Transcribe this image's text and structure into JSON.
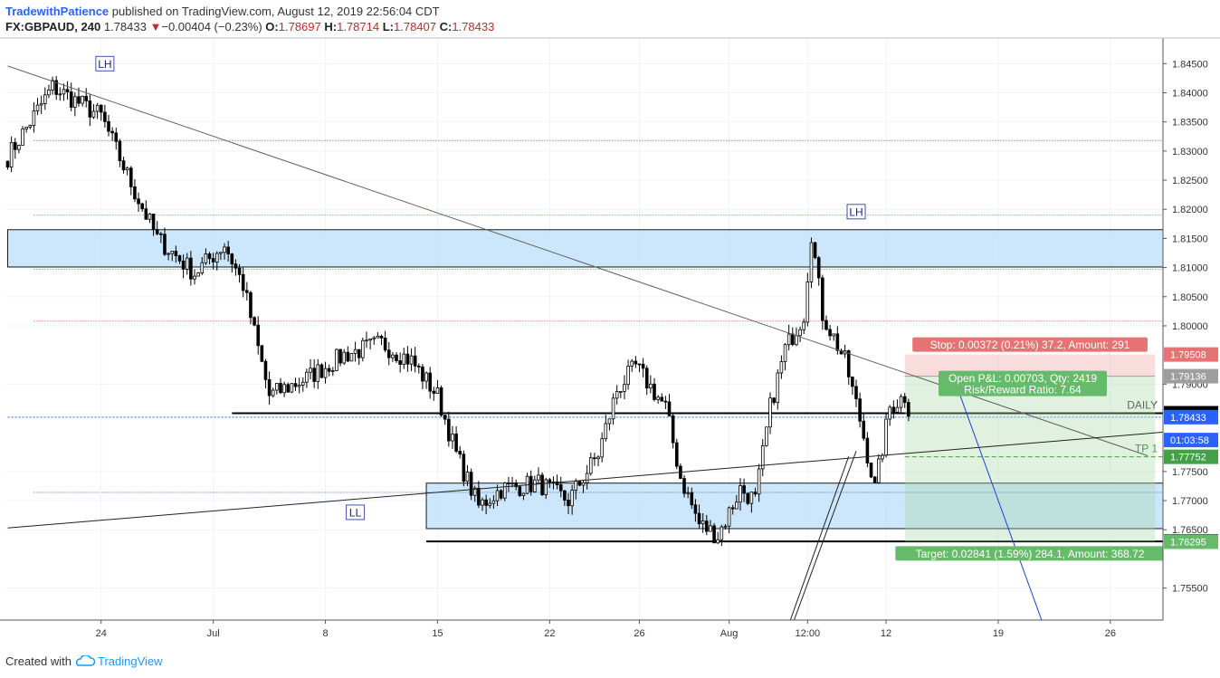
{
  "header": {
    "author": "TradewithPatience",
    "published": "published on TradingView.com, August 12, 2019 22:56:04 CDT",
    "symbol": "FX:GBPAUD, 240",
    "last": "1.78433",
    "change_arrow": "▼",
    "change": "−0.00404 (−0.23%)",
    "o_label": "O:",
    "o": "1.78697",
    "h_label": "H:",
    "h": "1.78714",
    "l_label": "L:",
    "l": "1.78407",
    "c_label": "C:",
    "c": "1.78433"
  },
  "footer": {
    "created_with": "Created with",
    "brand": "TradingView"
  },
  "chart_data": {
    "type": "candlestick",
    "y_ticks": [
      "1.84500",
      "1.84000",
      "1.83500",
      "1.83000",
      "1.82500",
      "1.82000",
      "1.81500",
      "1.81000",
      "1.80500",
      "1.80000",
      "1.79000",
      "1.77500",
      "1.77000",
      "1.76500",
      "1.75500"
    ],
    "y_tick_values": [
      1.845,
      1.84,
      1.835,
      1.83,
      1.825,
      1.82,
      1.815,
      1.81,
      1.805,
      1.8,
      1.79,
      1.775,
      1.77,
      1.765,
      1.755
    ],
    "ylim": [
      1.7495,
      1.8494
    ],
    "x_ticks": [
      {
        "label": "24",
        "i": 25
      },
      {
        "label": "Jul",
        "i": 55
      },
      {
        "label": "8",
        "i": 85
      },
      {
        "label": "15",
        "i": 115
      },
      {
        "label": "22",
        "i": 145
      },
      {
        "label": "26",
        "i": 169
      },
      {
        "label": "Aug",
        "i": 193
      },
      {
        "label": "12:00",
        "i": 214
      },
      {
        "label": "12",
        "i": 235
      },
      {
        "label": "19",
        "i": 265
      },
      {
        "label": "26",
        "i": 295
      }
    ],
    "price_badges": [
      {
        "text": "1.79508",
        "value": 1.79508,
        "bg": "#e57373",
        "fg": "#ffffff"
      },
      {
        "text": "1.79136",
        "value": 1.79136,
        "bg": "#9e9e9e",
        "fg": "#ffffff"
      },
      {
        "text": "1.78500",
        "value": 1.785,
        "bg": "#000000",
        "fg": "#ffffff"
      },
      {
        "text": "1.78433",
        "value": 1.78433,
        "bg": "#2962ff",
        "fg": "#ffffff"
      },
      {
        "text": "01:03:58",
        "value": 1.7804,
        "bg": "#2962ff",
        "fg": "#ffffff"
      },
      {
        "text": "1.77752",
        "value": 1.77752,
        "bg": "#43a047",
        "fg": "#ffffff"
      },
      {
        "text": "1.76300",
        "value": 1.763,
        "bg": "#000000",
        "fg": "#ffffff"
      },
      {
        "text": "1.76295",
        "value": 1.76295,
        "bg": "#66bb6a",
        "fg": "#ffffff"
      }
    ],
    "zones": [
      {
        "y1": 1.8165,
        "y2": 1.8101,
        "i1": 0,
        "i2": 310,
        "fill": "#bbdefb"
      },
      {
        "y1": 1.773,
        "y2": 1.7652,
        "i1": 112,
        "i2": 310,
        "fill": "#bbdefb"
      }
    ],
    "levels": [
      {
        "value": 1.785,
        "i1": 60,
        "i2": 310,
        "color": "#000000",
        "width": 2,
        "label": "DAILY"
      },
      {
        "value": 1.763,
        "i1": 112,
        "i2": 310,
        "color": "#000000",
        "width": 2,
        "label": ""
      },
      {
        "value": 1.78433,
        "i1": 0,
        "i2": 310,
        "color": "#2962ff",
        "width": 1,
        "dash": "2,2",
        "label": ""
      },
      {
        "value": 1.8318,
        "i1": 7,
        "i2": 310,
        "color": "#3f51b5",
        "width": 1,
        "dash": "1,2",
        "label": ""
      },
      {
        "value": 1.819,
        "i1": 7,
        "i2": 310,
        "color": "#43a047",
        "width": 1,
        "dash": "1,2",
        "label": ""
      },
      {
        "value": 1.8097,
        "i1": 7,
        "i2": 310,
        "color": "#43a047",
        "width": 1,
        "dash": "1,2",
        "label": ""
      },
      {
        "value": 1.8008,
        "i1": 7,
        "i2": 310,
        "color": "#e53935",
        "width": 1,
        "dash": "1,2",
        "label": ""
      },
      {
        "value": 1.7714,
        "i1": 7,
        "i2": 310,
        "color": "#3f51b5",
        "width": 1,
        "dash": "1,2",
        "label": ""
      }
    ],
    "position": {
      "i1": 240,
      "i2": 307,
      "entry": 1.79136,
      "stop": 1.79508,
      "target": 1.76295,
      "stop_label": "Stop: 0.00372 (0.21%) 37.2, Amount: 291",
      "open_label": "Open P&L: 0.00703, Qty: 2419",
      "rr_label": "Risk/Reward Ratio: 7.64",
      "target_label": "Target: 0.02841 (1.59%) 284.1, Amount: 368.72",
      "tp_label": "TP 1",
      "tp_value": 1.77752
    },
    "markers": [
      {
        "text": "LH",
        "i": 26,
        "value": 1.845
      },
      {
        "text": "LH",
        "i": 227,
        "value": 1.8196
      },
      {
        "text": "LL",
        "i": 93,
        "value": 1.768
      }
    ],
    "trendlines": [
      {
        "i1": 0,
        "v1": 1.8446,
        "i2": 305,
        "v2": 1.7777,
        "color": "#616161"
      },
      {
        "i1": 0,
        "v1": 1.7653,
        "i2": 310,
        "v2": 1.7818,
        "color": "#212121"
      },
      {
        "i1": 209,
        "v1": 1.7488,
        "i2": 225,
        "v2": 1.7776,
        "color": "#212121"
      },
      {
        "i1": 210,
        "v1": 1.7488,
        "i2": 227,
        "v2": 1.7785,
        "color": "#212121"
      },
      {
        "i1": 254,
        "v1": 1.7895,
        "i2": 277,
        "v2": 1.7488,
        "color": "#1e40d0"
      }
    ],
    "anchors": [
      {
        "i": 0,
        "v": 1.829
      },
      {
        "i": 12,
        "v": 1.841
      },
      {
        "i": 25,
        "v": 1.836
      },
      {
        "i": 34,
        "v": 1.823
      },
      {
        "i": 40,
        "v": 1.815
      },
      {
        "i": 50,
        "v": 1.809
      },
      {
        "i": 58,
        "v": 1.814
      },
      {
        "i": 63,
        "v": 1.807
      },
      {
        "i": 70,
        "v": 1.788
      },
      {
        "i": 80,
        "v": 1.791
      },
      {
        "i": 90,
        "v": 1.795
      },
      {
        "i": 100,
        "v": 1.797
      },
      {
        "i": 108,
        "v": 1.794
      },
      {
        "i": 115,
        "v": 1.788
      },
      {
        "i": 120,
        "v": 1.778
      },
      {
        "i": 126,
        "v": 1.769
      },
      {
        "i": 132,
        "v": 1.772
      },
      {
        "i": 142,
        "v": 1.773
      },
      {
        "i": 150,
        "v": 1.77
      },
      {
        "i": 158,
        "v": 1.778
      },
      {
        "i": 163,
        "v": 1.789
      },
      {
        "i": 168,
        "v": 1.793
      },
      {
        "i": 176,
        "v": 1.786
      },
      {
        "i": 180,
        "v": 1.774
      },
      {
        "i": 185,
        "v": 1.766
      },
      {
        "i": 190,
        "v": 1.764
      },
      {
        "i": 196,
        "v": 1.772
      },
      {
        "i": 200,
        "v": 1.77
      },
      {
        "i": 204,
        "v": 1.786
      },
      {
        "i": 208,
        "v": 1.796
      },
      {
        "i": 213,
        "v": 1.802
      },
      {
        "i": 215,
        "v": 1.816
      },
      {
        "i": 218,
        "v": 1.802
      },
      {
        "i": 224,
        "v": 1.794
      },
      {
        "i": 228,
        "v": 1.784
      },
      {
        "i": 232,
        "v": 1.772
      },
      {
        "i": 236,
        "v": 1.786
      },
      {
        "i": 240,
        "v": 1.788
      },
      {
        "i": 241,
        "v": 1.7845
      }
    ]
  }
}
